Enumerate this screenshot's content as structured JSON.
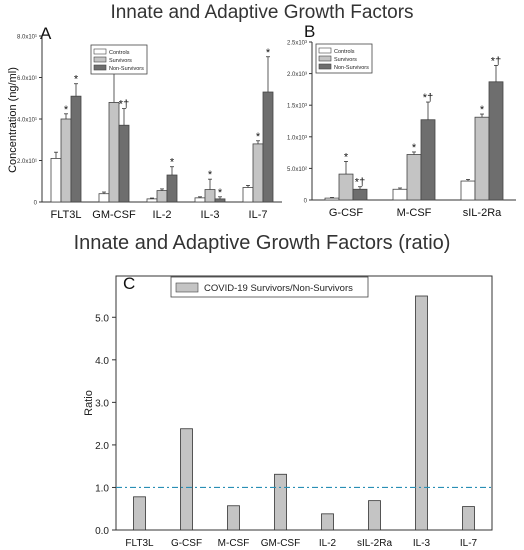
{
  "title_top": "Innate and Adaptive  Growth Factors",
  "title_ratio": "Innate and Adaptive Growth Factors (ratio)",
  "colors": {
    "controls": "#ffffff",
    "survivors": "#c4c4c4",
    "non_survivors": "#6e6e6e",
    "ratio_bar": "#c4c4c4",
    "reference_line": "#2a8fb5"
  },
  "chart_data": [
    {
      "panel": "A",
      "type": "bar",
      "ylabel": "Concentration  (ng/ml)",
      "ylim": [
        0,
        80
      ],
      "yticks": [
        {
          "value": 0,
          "label": "0"
        },
        {
          "value": 20,
          "label": "2.0x10¹"
        },
        {
          "value": 40,
          "label": "4.0x10¹"
        },
        {
          "value": 60,
          "label": "6.0x10¹"
        },
        {
          "value": 80,
          "label": "8.0x10¹"
        }
      ],
      "categories": [
        "FLT3L",
        "GM-CSF",
        "IL-2",
        "IL-3",
        "IL-7"
      ],
      "series": [
        {
          "name": "Controls",
          "values": [
            21,
            4,
            1.5,
            2,
            7
          ],
          "errors": [
            3,
            0.8,
            0.4,
            0.5,
            1
          ]
        },
        {
          "name": "Survivors",
          "values": [
            40,
            48,
            5.5,
            6,
            28
          ],
          "errors": [
            2.5,
            15,
            0.8,
            5,
            1.5
          ]
        },
        {
          "name": "Non-Survivors",
          "values": [
            51,
            37,
            13,
            1.5,
            53
          ],
          "errors": [
            6,
            8,
            4,
            1,
            17
          ]
        }
      ],
      "annotations": [
        {
          "category": 0,
          "series": 1,
          "text": "*"
        },
        {
          "category": 0,
          "series": 2,
          "text": "*"
        },
        {
          "category": 1,
          "series": 1,
          "text": "*"
        },
        {
          "category": 1,
          "series": 2,
          "text": "*†"
        },
        {
          "category": 2,
          "series": 2,
          "text": "*"
        },
        {
          "category": 3,
          "series": 1,
          "text": "*"
        },
        {
          "category": 3,
          "series": 2,
          "text": "*"
        },
        {
          "category": 4,
          "series": 1,
          "text": "*"
        },
        {
          "category": 4,
          "series": 2,
          "text": "*"
        }
      ]
    },
    {
      "panel": "B",
      "type": "bar",
      "ylabel": "",
      "ylim": [
        0,
        2500
      ],
      "yticks": [
        {
          "value": 0,
          "label": "0"
        },
        {
          "value": 500,
          "label": "5.0x10²"
        },
        {
          "value": 1000,
          "label": "1.0x10³"
        },
        {
          "value": 1500,
          "label": "1.5x10³"
        },
        {
          "value": 2000,
          "label": "2.0x10³"
        },
        {
          "value": 2500,
          "label": "2.5x10³"
        }
      ],
      "categories": [
        "G-CSF",
        "M-CSF",
        "sIL-2Ra"
      ],
      "series": [
        {
          "name": "Controls",
          "values": [
            30,
            170,
            300
          ],
          "errors": [
            10,
            20,
            25
          ]
        },
        {
          "name": "Survivors",
          "values": [
            410,
            720,
            1310
          ],
          "errors": [
            200,
            40,
            50
          ]
        },
        {
          "name": "Non-Survivors",
          "values": [
            170,
            1270,
            1870
          ],
          "errors": [
            40,
            280,
            260
          ]
        }
      ],
      "annotations": [
        {
          "category": 0,
          "series": 1,
          "text": "*"
        },
        {
          "category": 0,
          "series": 2,
          "text": "*†"
        },
        {
          "category": 1,
          "series": 1,
          "text": "*"
        },
        {
          "category": 1,
          "series": 2,
          "text": "*†"
        },
        {
          "category": 2,
          "series": 1,
          "text": "*"
        },
        {
          "category": 2,
          "series": 2,
          "text": "*†"
        }
      ]
    },
    {
      "panel": "C",
      "type": "bar",
      "ylabel": "Ratio",
      "ylim": [
        0,
        6
      ],
      "yticks": [
        {
          "value": 0,
          "label": "0.0"
        },
        {
          "value": 1,
          "label": "1.0"
        },
        {
          "value": 2,
          "label": "2.0"
        },
        {
          "value": 3,
          "label": "3.0"
        },
        {
          "value": 4,
          "label": "4.0"
        },
        {
          "value": 5,
          "label": "5.0"
        },
        {
          "value": 6,
          "label": "6.0"
        }
      ],
      "categories": [
        "FLT3L",
        "G-CSF",
        "M-CSF",
        "GM-CSF",
        "IL-2",
        "sIL-2Ra",
        "IL-3",
        "IL-7"
      ],
      "series": [
        {
          "name": "COVID-19 Survivors/Non-Survivors",
          "values": [
            0.78,
            2.38,
            0.57,
            1.31,
            0.38,
            0.69,
            5.5,
            0.55
          ]
        }
      ],
      "reference_line": 1.0
    }
  ]
}
